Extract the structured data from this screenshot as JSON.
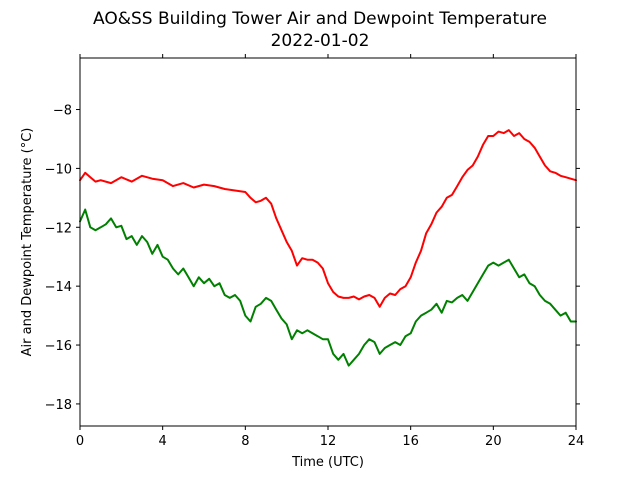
{
  "chart_data": {
    "type": "line",
    "title": "AO&SS Building Tower Air and Dewpoint Temperature",
    "subtitle": "2022-01-02",
    "xlabel": "Time (UTC)",
    "ylabel": "Air and Dewpoint Temperature (°C)",
    "xlim": [
      0,
      24
    ],
    "ylim": [
      -18.75,
      -6.25
    ],
    "x_ticks": [
      "0",
      "4",
      "8",
      "12",
      "16",
      "20",
      "24"
    ],
    "y_ticks": [
      "−8",
      "−10",
      "−12",
      "−14",
      "−16",
      "−18"
    ],
    "x_tick_values": [
      0,
      4,
      8,
      12,
      16,
      20,
      24
    ],
    "y_tick_values": [
      -8,
      -10,
      -12,
      -14,
      -16,
      -18
    ],
    "grid": false,
    "legend": "none",
    "series": [
      {
        "color": "#ff0000",
        "x": [
          0,
          0.25,
          0.5,
          0.75,
          1,
          1.5,
          2,
          2.5,
          3,
          3.5,
          4,
          4.5,
          5,
          5.5,
          6,
          6.5,
          7,
          7.5,
          8,
          8.25,
          8.5,
          8.75,
          9,
          9.25,
          9.5,
          9.75,
          10,
          10.25,
          10.5,
          10.75,
          11,
          11.25,
          11.5,
          11.75,
          12,
          12.25,
          12.5,
          12.75,
          13,
          13.25,
          13.5,
          13.75,
          14,
          14.25,
          14.5,
          14.75,
          15,
          15.25,
          15.5,
          15.75,
          16,
          16.25,
          16.5,
          16.75,
          17,
          17.25,
          17.5,
          17.75,
          18,
          18.25,
          18.5,
          18.75,
          19,
          19.25,
          19.5,
          19.75,
          20,
          20.25,
          20.5,
          20.75,
          21,
          21.25,
          21.5,
          21.75,
          22,
          22.25,
          22.5,
          22.75,
          23,
          23.25,
          23.5,
          23.75,
          24
        ],
        "y": [
          -10.4,
          -10.15,
          -10.3,
          -10.45,
          -10.4,
          -10.5,
          -10.3,
          -10.45,
          -10.25,
          -10.35,
          -10.4,
          -10.6,
          -10.5,
          -10.65,
          -10.55,
          -10.6,
          -10.7,
          -10.75,
          -10.8,
          -11.0,
          -11.15,
          -11.1,
          -11.0,
          -11.2,
          -11.7,
          -12.1,
          -12.5,
          -12.8,
          -13.3,
          -13.05,
          -13.1,
          -13.1,
          -13.2,
          -13.4,
          -13.9,
          -14.2,
          -14.35,
          -14.4,
          -14.4,
          -14.35,
          -14.45,
          -14.35,
          -14.3,
          -14.4,
          -14.7,
          -14.4,
          -14.25,
          -14.3,
          -14.1,
          -14.0,
          -13.7,
          -13.2,
          -12.8,
          -12.2,
          -11.9,
          -11.5,
          -11.3,
          -11.0,
          -10.9,
          -10.6,
          -10.3,
          -10.05,
          -9.9,
          -9.6,
          -9.2,
          -8.9,
          -8.9,
          -8.75,
          -8.8,
          -8.7,
          -8.9,
          -8.8,
          -9.0,
          -9.1,
          -9.3,
          -9.6,
          -9.9,
          -10.1,
          -10.15,
          -10.25,
          -10.3,
          -10.35,
          -10.4
        ]
      },
      {
        "color": "#008000",
        "x": [
          0,
          0.25,
          0.5,
          0.75,
          1,
          1.25,
          1.5,
          1.75,
          2,
          2.25,
          2.5,
          2.75,
          3,
          3.25,
          3.5,
          3.75,
          4,
          4.25,
          4.5,
          4.75,
          5,
          5.25,
          5.5,
          5.75,
          6,
          6.25,
          6.5,
          6.75,
          7,
          7.25,
          7.5,
          7.75,
          8,
          8.25,
          8.5,
          8.75,
          9,
          9.25,
          9.5,
          9.75,
          10,
          10.25,
          10.5,
          10.75,
          11,
          11.25,
          11.5,
          11.75,
          12,
          12.25,
          12.5,
          12.75,
          13,
          13.25,
          13.5,
          13.75,
          14,
          14.25,
          14.5,
          14.75,
          15,
          15.25,
          15.5,
          15.75,
          16,
          16.25,
          16.5,
          16.75,
          17,
          17.25,
          17.5,
          17.75,
          18,
          18.25,
          18.5,
          18.75,
          19,
          19.25,
          19.5,
          19.75,
          20,
          20.25,
          20.5,
          20.75,
          21,
          21.25,
          21.5,
          21.75,
          22,
          22.25,
          22.5,
          22.75,
          23,
          23.25,
          23.5,
          23.75,
          24
        ],
        "y": [
          -11.8,
          -11.4,
          -12.0,
          -12.1,
          -12.0,
          -11.9,
          -11.7,
          -12.0,
          -11.95,
          -12.4,
          -12.3,
          -12.6,
          -12.3,
          -12.5,
          -12.9,
          -12.6,
          -13.0,
          -13.1,
          -13.4,
          -13.6,
          -13.4,
          -13.7,
          -14.0,
          -13.7,
          -13.9,
          -13.75,
          -14.0,
          -13.9,
          -14.3,
          -14.4,
          -14.3,
          -14.5,
          -15.0,
          -15.2,
          -14.7,
          -14.6,
          -14.4,
          -14.5,
          -14.8,
          -15.1,
          -15.3,
          -15.8,
          -15.5,
          -15.6,
          -15.5,
          -15.6,
          -15.7,
          -15.8,
          -15.8,
          -16.3,
          -16.5,
          -16.3,
          -16.7,
          -16.5,
          -16.3,
          -16.0,
          -15.8,
          -15.9,
          -16.3,
          -16.1,
          -16.0,
          -15.9,
          -16.0,
          -15.7,
          -15.6,
          -15.2,
          -15.0,
          -14.9,
          -14.8,
          -14.6,
          -14.9,
          -14.5,
          -14.55,
          -14.4,
          -14.3,
          -14.5,
          -14.2,
          -13.9,
          -13.6,
          -13.3,
          -13.2,
          -13.3,
          -13.2,
          -13.1,
          -13.4,
          -13.7,
          -13.6,
          -13.9,
          -14.0,
          -14.3,
          -14.5,
          -14.6,
          -14.8,
          -15.0,
          -14.9,
          -15.2,
          -15.2
        ]
      }
    ]
  }
}
